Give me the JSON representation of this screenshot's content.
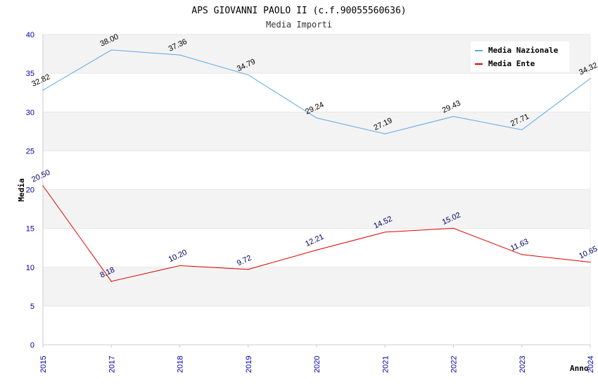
{
  "chart_data": {
    "type": "line",
    "title": "APS GIOVANNI PAOLO II (c.f.90055560636)",
    "subtitle": "Media Importi",
    "xlabel": "Anno",
    "ylabel": "Media",
    "ylim": [
      0,
      40
    ],
    "yticks": [
      "0",
      "5",
      "10",
      "15",
      "20",
      "25",
      "30",
      "35",
      "40"
    ],
    "categories": [
      "2015",
      "2017",
      "2018",
      "2019",
      "2020",
      "2021",
      "2022",
      "2023",
      "2024"
    ],
    "grid": true,
    "legend_position": "top-right",
    "series": [
      {
        "name": "Media Nazionale",
        "color": "#5aa7e6",
        "label_color": "#000000",
        "values": [
          32.82,
          38.0,
          37.36,
          34.79,
          29.24,
          27.19,
          29.43,
          27.71,
          34.32
        ],
        "labels": [
          "32.82",
          "38.00",
          "37.36",
          "34.79",
          "29.24",
          "27.19",
          "29.43",
          "27.71",
          "34.32"
        ]
      },
      {
        "name": "Media Ente",
        "color": "#dd0000",
        "label_color": "#000066",
        "values": [
          20.5,
          8.18,
          10.2,
          9.72,
          12.21,
          14.52,
          15.02,
          11.63,
          10.65
        ],
        "labels": [
          "20.50",
          "8.18",
          "10.20",
          "9.72",
          "12.21",
          "14.52",
          "15.02",
          "11.63",
          "10.65"
        ]
      }
    ]
  }
}
